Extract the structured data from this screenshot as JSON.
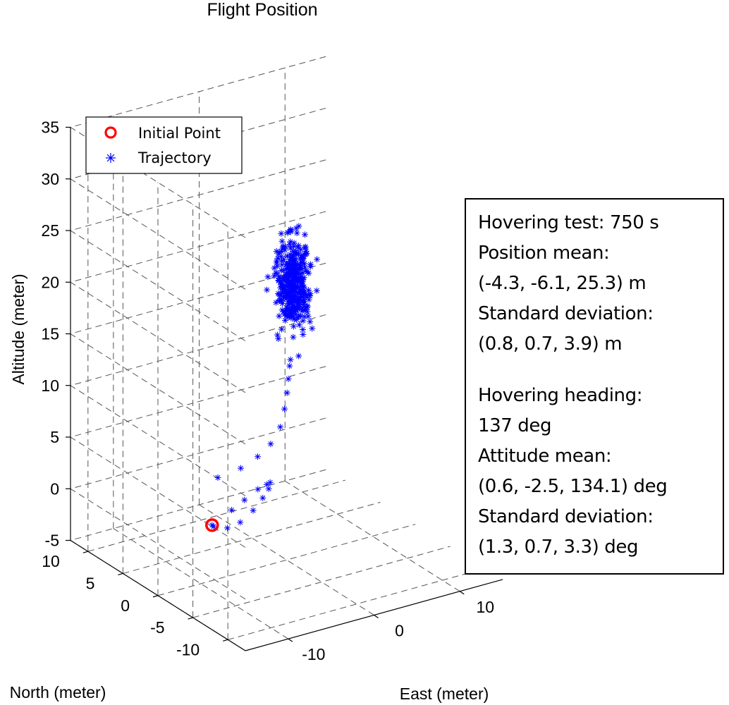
{
  "chart_data": {
    "type": "scatter3d",
    "title": "Flight Position",
    "xlabel": "East (meter)",
    "ylabel": "North (meter)",
    "zlabel": "Altitude (meter)",
    "x_ticks": [
      "-10",
      "0",
      "10"
    ],
    "y_ticks": [
      "-10",
      "-5",
      "0",
      "5",
      "10"
    ],
    "z_ticks": [
      "-5",
      "0",
      "5",
      "10",
      "15",
      "20",
      "25",
      "30",
      "35"
    ],
    "xlim": [
      -15,
      15
    ],
    "ylim": [
      -12.5,
      12.5
    ],
    "zlim": [
      -5,
      35
    ],
    "grid": true,
    "legend": {
      "location": "top-left",
      "entries": [
        {
          "label": "Initial Point",
          "marker": "circle",
          "color": "#ff0000"
        },
        {
          "label": "Trajectory",
          "marker": "asterisk",
          "color": "#0000ff"
        }
      ]
    },
    "initial_point": {
      "x": -8.2,
      "y": 0.6,
      "z": 0
    },
    "trajectory": {
      "descent_path": [
        {
          "x": -8.2,
          "y": 0.6,
          "z": 0
        },
        {
          "x": -7.2,
          "y": 1.6,
          "z": -0.8
        },
        {
          "x": -5.6,
          "y": 1.6,
          "z": -1.3
        },
        {
          "x": -4.1,
          "y": 1.6,
          "z": -1.1
        },
        {
          "x": -2.6,
          "y": 1.6,
          "z": -0.3
        },
        {
          "x": -1.8,
          "y": 1.2,
          "z": 0.9
        },
        {
          "x": -1.6,
          "y": 0.6,
          "z": 2.0
        },
        {
          "x": -2.0,
          "y": -0.1,
          "z": 3.0
        },
        {
          "x": -2.8,
          "y": -0.6,
          "z": 3.2
        },
        {
          "x": -4.0,
          "y": -0.8,
          "z": 3.1
        },
        {
          "x": -5.4,
          "y": -0.6,
          "z": 2.3
        },
        {
          "x": -6.4,
          "y": 0.0,
          "z": 1.3
        },
        {
          "x": -7.2,
          "y": 1.0,
          "z": 4.2
        },
        {
          "x": -6.0,
          "y": -0.8,
          "z": 5.6
        },
        {
          "x": -5.0,
          "y": -2.0,
          "z": 7.0
        },
        {
          "x": -4.3,
          "y": -3.0,
          "z": 8.5
        },
        {
          "x": -4.0,
          "y": -4.0,
          "z": 10.5
        },
        {
          "x": -4.0,
          "y": -4.6,
          "z": 12.5
        },
        {
          "x": -4.1,
          "y": -5.1,
          "z": 14.3
        },
        {
          "x": -4.2,
          "y": -5.4,
          "z": 15.8
        },
        {
          "x": -4.3,
          "y": -5.7,
          "z": 17.2
        }
      ],
      "hover_cluster": {
        "count": 380,
        "center": {
          "x": -4.3,
          "y": -6.1,
          "z": 25.3
        },
        "std": {
          "x": 0.8,
          "y": 0.7,
          "z": 3.9
        }
      }
    }
  },
  "info": {
    "line1": "Hovering test: 750 s",
    "line2": "Position mean:",
    "line3": "(-4.3, -6.1, 25.3) m",
    "line4": "Standard deviation:",
    "line5": "(0.8, 0.7, 3.9) m",
    "line6": "Hovering heading:",
    "line7": "137 deg",
    "line8": "Attitude mean:",
    "line9": "(0.6, -2.5, 134.1) deg",
    "line10": "Standard deviation:",
    "line11": "(1.3, 0.7, 3.3) deg"
  }
}
